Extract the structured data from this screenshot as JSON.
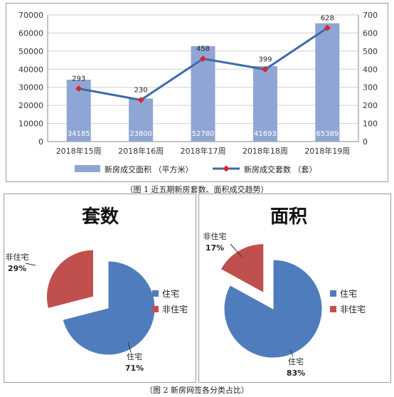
{
  "chart_data": [
    {
      "type": "bar+line",
      "caption": "（图 1 近五期新房套数、面积成交趋势）",
      "categories": [
        "2018年15周",
        "2018年16周",
        "2018年17周",
        "2018年18周",
        "2018年19周"
      ],
      "series": [
        {
          "name": "新房成交面积 （平方米）",
          "type": "bar",
          "axis": "left",
          "color": "#8fa6d4",
          "values": [
            34185,
            23800,
            52780,
            41693,
            65389
          ]
        },
        {
          "name": "新房成交套数 （套）",
          "type": "line",
          "axis": "right",
          "color": "#3f6aa8",
          "marker_color": "#d9262a",
          "values": [
            293,
            230,
            458,
            399,
            628
          ]
        }
      ],
      "ylim_left": [
        0,
        70000
      ],
      "yticks_left": [
        "0",
        "10000",
        "20000",
        "30000",
        "40000",
        "50000",
        "60000",
        "70000"
      ],
      "ylim_right": [
        0,
        700
      ],
      "yticks_right": [
        "0",
        "100",
        "200",
        "300",
        "400",
        "500",
        "600",
        "700"
      ],
      "grid": true,
      "legend_position": "bottom"
    },
    {
      "type": "pie",
      "title": "套数",
      "labels": [
        "住宅",
        "非住宅"
      ],
      "values": [
        71,
        29
      ],
      "value_labels": [
        "71%",
        "29%"
      ],
      "colors": [
        "#4f7cbd",
        "#c0504d"
      ],
      "exploded": "非住宅",
      "legend_position": "right"
    },
    {
      "type": "pie",
      "title": "面积",
      "labels": [
        "住宅",
        "非住宅"
      ],
      "values": [
        83,
        17
      ],
      "value_labels": [
        "83%",
        "17%"
      ],
      "colors": [
        "#4f7cbd",
        "#c0504d"
      ],
      "exploded": "非住宅",
      "legend_position": "right"
    }
  ],
  "caption2": "（图 2 新房网签各分类占比）"
}
